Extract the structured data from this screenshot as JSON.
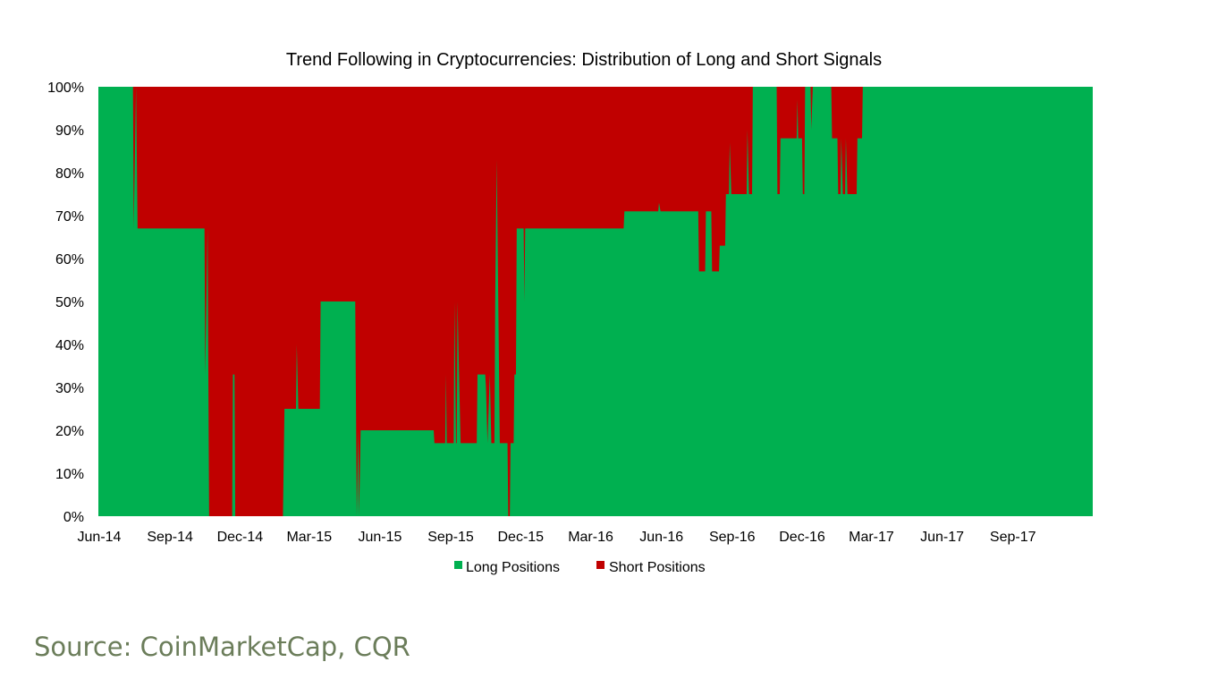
{
  "chart_data": {
    "type": "area",
    "stacked": true,
    "title": "Trend Following in Cryptocurrencies: Distribution of Long and Short Signals",
    "xlabel": "",
    "ylabel": "",
    "ylim": [
      0,
      100
    ],
    "y_ticks": [
      "0%",
      "10%",
      "20%",
      "30%",
      "40%",
      "50%",
      "60%",
      "70%",
      "80%",
      "90%",
      "100%"
    ],
    "x_ticks": [
      "Jun-14",
      "Sep-14",
      "Dec-14",
      "Mar-15",
      "Jun-15",
      "Sep-15",
      "Dec-15",
      "Mar-16",
      "Jun-16",
      "Sep-16",
      "Dec-16",
      "Mar-17",
      "Jun-17",
      "Sep-17"
    ],
    "x_range": [
      "2014-06-01",
      "2017-12-15"
    ],
    "grid": false,
    "legend_position": "bottom",
    "colors": {
      "long": "#00b050",
      "short": "#c00000"
    },
    "series": [
      {
        "name": "Long Positions",
        "color": "#00b050"
      },
      {
        "name": "Short Positions",
        "color": "#c00000"
      }
    ],
    "long_pct": [
      [
        "2014-06-01",
        100
      ],
      [
        "2014-07-16",
        100
      ],
      [
        "2014-07-17",
        67
      ],
      [
        "2014-07-20",
        100
      ],
      [
        "2014-07-22",
        67
      ],
      [
        "2014-10-17",
        67
      ],
      [
        "2014-10-18",
        33
      ],
      [
        "2014-10-21",
        67
      ],
      [
        "2014-10-23",
        0
      ],
      [
        "2014-11-22",
        0
      ],
      [
        "2014-11-23",
        33
      ],
      [
        "2014-11-25",
        33
      ],
      [
        "2014-11-26",
        0
      ],
      [
        "2015-01-27",
        0
      ],
      [
        "2015-01-29",
        25
      ],
      [
        "2015-02-13",
        25
      ],
      [
        "2015-02-14",
        40
      ],
      [
        "2015-02-16",
        25
      ],
      [
        "2015-03-16",
        25
      ],
      [
        "2015-03-17",
        50
      ],
      [
        "2015-05-01",
        50
      ],
      [
        "2015-05-03",
        0
      ],
      [
        "2015-05-05",
        20
      ],
      [
        "2015-05-06",
        0
      ],
      [
        "2015-05-08",
        20
      ],
      [
        "2015-08-11",
        20
      ],
      [
        "2015-08-12",
        17
      ],
      [
        "2015-08-26",
        17
      ],
      [
        "2015-08-27",
        33
      ],
      [
        "2015-08-28",
        17
      ],
      [
        "2015-09-06",
        17
      ],
      [
        "2015-09-07",
        50
      ],
      [
        "2015-09-09",
        17
      ],
      [
        "2015-09-10",
        17
      ],
      [
        "2015-09-11",
        50
      ],
      [
        "2015-09-13",
        33
      ],
      [
        "2015-09-15",
        17
      ],
      [
        "2015-10-06",
        17
      ],
      [
        "2015-10-07",
        33
      ],
      [
        "2015-10-17",
        33
      ],
      [
        "2015-10-18",
        30
      ],
      [
        "2015-10-20",
        17
      ],
      [
        "2015-10-23",
        33
      ],
      [
        "2015-10-25",
        17
      ],
      [
        "2015-10-29",
        17
      ],
      [
        "2015-10-30",
        50
      ],
      [
        "2015-11-01",
        83
      ],
      [
        "2015-11-03",
        50
      ],
      [
        "2015-11-05",
        17
      ],
      [
        "2015-11-15",
        17
      ],
      [
        "2015-11-16",
        0
      ],
      [
        "2015-11-18",
        0
      ],
      [
        "2015-11-19",
        17
      ],
      [
        "2015-11-23",
        17
      ],
      [
        "2015-11-24",
        33
      ],
      [
        "2015-11-26",
        33
      ],
      [
        "2015-11-27",
        67
      ],
      [
        "2015-12-06",
        67
      ],
      [
        "2015-12-07",
        50
      ],
      [
        "2015-12-08",
        67
      ],
      [
        "2015-12-12",
        67
      ],
      [
        "2015-12-13",
        67
      ],
      [
        "2016-04-14",
        67
      ],
      [
        "2016-04-15",
        71
      ],
      [
        "2016-05-29",
        71
      ],
      [
        "2016-05-30",
        73
      ],
      [
        "2016-06-01",
        71
      ],
      [
        "2016-07-20",
        71
      ],
      [
        "2016-07-21",
        57
      ],
      [
        "2016-07-29",
        57
      ],
      [
        "2016-07-30",
        71
      ],
      [
        "2016-08-06",
        71
      ],
      [
        "2016-08-07",
        57
      ],
      [
        "2016-08-16",
        57
      ],
      [
        "2016-08-17",
        63
      ],
      [
        "2016-08-24",
        63
      ],
      [
        "2016-08-25",
        75
      ],
      [
        "2016-08-29",
        75
      ],
      [
        "2016-08-30",
        87
      ],
      [
        "2016-09-01",
        75
      ],
      [
        "2016-09-21",
        75
      ],
      [
        "2016-09-22",
        90
      ],
      [
        "2016-09-24",
        75
      ],
      [
        "2016-09-28",
        75
      ],
      [
        "2016-09-29",
        100
      ],
      [
        "2016-10-30",
        100
      ],
      [
        "2016-10-31",
        75
      ],
      [
        "2016-11-03",
        75
      ],
      [
        "2016-11-04",
        88
      ],
      [
        "2016-11-25",
        88
      ],
      [
        "2016-11-26",
        97
      ],
      [
        "2016-11-27",
        88
      ],
      [
        "2016-12-02",
        88
      ],
      [
        "2016-12-03",
        75
      ],
      [
        "2016-12-05",
        75
      ],
      [
        "2016-12-06",
        100
      ],
      [
        "2016-12-13",
        100
      ],
      [
        "2016-12-14",
        90
      ],
      [
        "2016-12-16",
        100
      ],
      [
        "2017-01-09",
        100
      ],
      [
        "2017-01-10",
        88
      ],
      [
        "2017-01-17",
        88
      ],
      [
        "2017-01-18",
        75
      ],
      [
        "2017-01-21",
        75
      ],
      [
        "2017-01-22",
        88
      ],
      [
        "2017-01-24",
        75
      ],
      [
        "2017-01-27",
        75
      ],
      [
        "2017-01-28",
        88
      ],
      [
        "2017-01-30",
        75
      ],
      [
        "2017-02-11",
        75
      ],
      [
        "2017-02-12",
        88
      ],
      [
        "2017-02-18",
        88
      ],
      [
        "2017-02-19",
        100
      ],
      [
        "2017-12-15",
        100
      ]
    ]
  },
  "legend": {
    "long_label": "Long Positions",
    "short_label": "Short Positions"
  },
  "source_text": "Source: CoinMarketCap, CQR"
}
